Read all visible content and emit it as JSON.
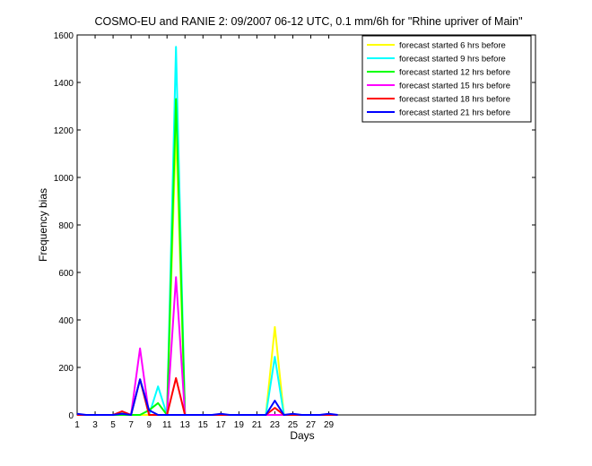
{
  "chart_data": {
    "type": "line",
    "title": "COSMO-EU and RANIE 2: 09/2007 06-12 UTC, 0.1 mm/6h for \"Rhine upriver of Main\"",
    "xlabel": "Days",
    "ylabel": "Frequency bias",
    "xlim": [
      1,
      52
    ],
    "ylim": [
      0,
      1600
    ],
    "x_ticks": [
      1,
      3,
      5,
      7,
      9,
      11,
      13,
      15,
      17,
      19,
      21,
      23,
      25,
      27,
      29
    ],
    "x_tick_labels": [
      "1",
      "3",
      "5",
      "7",
      "9",
      "11",
      "13",
      "15",
      "17",
      "19",
      "21",
      "23",
      "25",
      "27",
      "29"
    ],
    "y_ticks": [
      0,
      200,
      400,
      600,
      800,
      1000,
      1200,
      1400,
      1600
    ],
    "y_tick_labels": [
      "0",
      "200",
      "400",
      "600",
      "800",
      "1000",
      "1200",
      "1400",
      "1600"
    ],
    "grid": false,
    "legend_position": "top-right",
    "series": [
      {
        "name": "forecast started 6 hrs before",
        "color": "#ffff00",
        "x": [
          1,
          2,
          3,
          4,
          5,
          6,
          7,
          8,
          9,
          10,
          11,
          12,
          13,
          14,
          15,
          16,
          17,
          18,
          19,
          20,
          21,
          22,
          23,
          24,
          25,
          26,
          27,
          28,
          29,
          30
        ],
        "y": [
          0,
          0,
          0,
          0,
          0,
          0,
          0,
          0,
          0,
          0,
          0,
          1200,
          0,
          0,
          0,
          0,
          0,
          0,
          0,
          0,
          0,
          0,
          370,
          0,
          0,
          0,
          0,
          0,
          0,
          0
        ]
      },
      {
        "name": "forecast started 9 hrs before",
        "color": "#00ffff",
        "x": [
          1,
          2,
          3,
          4,
          5,
          6,
          7,
          8,
          9,
          10,
          11,
          12,
          13,
          14,
          15,
          16,
          17,
          18,
          19,
          20,
          21,
          22,
          23,
          24,
          25,
          26,
          27,
          28,
          29,
          30
        ],
        "y": [
          0,
          0,
          0,
          0,
          0,
          10,
          0,
          150,
          0,
          120,
          0,
          1550,
          0,
          0,
          0,
          0,
          0,
          0,
          0,
          0,
          0,
          0,
          245,
          0,
          0,
          0,
          0,
          0,
          0,
          0
        ]
      },
      {
        "name": "forecast started 12 hrs before",
        "color": "#00ff00",
        "x": [
          1,
          2,
          3,
          4,
          5,
          6,
          7,
          8,
          9,
          10,
          11,
          12,
          13,
          14,
          15,
          16,
          17,
          18,
          19,
          20,
          21,
          22,
          23,
          24,
          25,
          26,
          27,
          28,
          29,
          30
        ],
        "y": [
          0,
          0,
          0,
          0,
          0,
          0,
          0,
          0,
          20,
          50,
          0,
          1330,
          0,
          0,
          0,
          0,
          0,
          0,
          0,
          0,
          0,
          0,
          0,
          0,
          0,
          0,
          0,
          0,
          0,
          0
        ]
      },
      {
        "name": "forecast started 15 hrs before",
        "color": "#ff00ff",
        "x": [
          1,
          2,
          3,
          4,
          5,
          6,
          7,
          8,
          9,
          10,
          11,
          12,
          13,
          14,
          15,
          16,
          17,
          18,
          19,
          20,
          21,
          22,
          23,
          24,
          25,
          26,
          27,
          28,
          29,
          30
        ],
        "y": [
          0,
          0,
          0,
          0,
          0,
          15,
          0,
          280,
          0,
          0,
          0,
          580,
          0,
          0,
          0,
          0,
          0,
          0,
          0,
          0,
          0,
          0,
          0,
          0,
          0,
          0,
          0,
          0,
          0,
          0
        ]
      },
      {
        "name": "forecast started 18 hrs before",
        "color": "#ff0000",
        "x": [
          1,
          2,
          3,
          4,
          5,
          6,
          7,
          8,
          9,
          10,
          11,
          12,
          13,
          14,
          15,
          16,
          17,
          18,
          19,
          20,
          21,
          22,
          23,
          24,
          25,
          26,
          27,
          28,
          29,
          30
        ],
        "y": [
          0,
          0,
          0,
          0,
          0,
          15,
          0,
          150,
          0,
          0,
          0,
          155,
          0,
          0,
          0,
          0,
          0,
          0,
          0,
          0,
          0,
          0,
          30,
          0,
          0,
          0,
          0,
          0,
          0,
          0
        ]
      },
      {
        "name": "forecast started 21 hrs before",
        "color": "#0000ff",
        "x": [
          1,
          2,
          3,
          4,
          5,
          6,
          7,
          8,
          9,
          10,
          11,
          12,
          13,
          14,
          15,
          16,
          17,
          18,
          19,
          20,
          21,
          22,
          23,
          24,
          25,
          26,
          27,
          28,
          29,
          30
        ],
        "y": [
          5,
          0,
          0,
          0,
          0,
          5,
          0,
          150,
          20,
          0,
          0,
          0,
          0,
          0,
          0,
          0,
          5,
          0,
          0,
          0,
          0,
          0,
          60,
          0,
          5,
          0,
          0,
          0,
          5,
          0
        ]
      }
    ]
  }
}
